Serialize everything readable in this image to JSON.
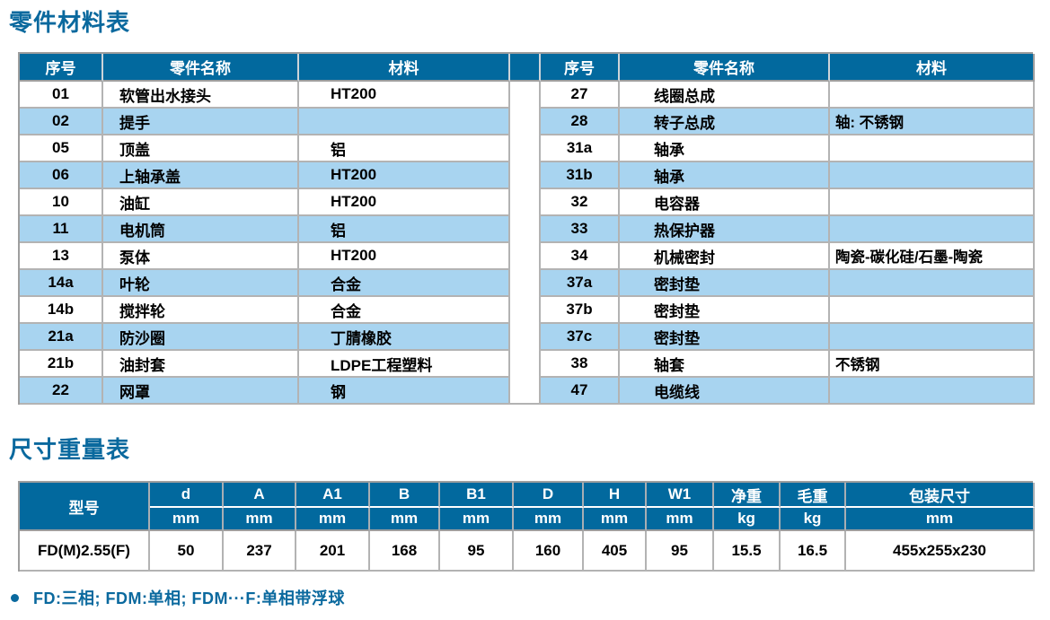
{
  "page": {
    "section1_title": "零件材料表",
    "section2_title": "尺寸重量表",
    "footnote": "FD:三相; FDM:单相; FDM···F:单相带浮球"
  },
  "colors": {
    "header_blue": "#02699E",
    "title_blue": "#0A699E",
    "stripe_blue": "#A8D4F0",
    "border_grey": "#9E9E9E"
  },
  "parts_table": {
    "headers": {
      "no": "序号",
      "name": "零件名称",
      "material": "材料"
    },
    "left_rows": [
      {
        "no": "01",
        "name": "软管出水接头",
        "material": "HT200"
      },
      {
        "no": "02",
        "name": "提手",
        "material": ""
      },
      {
        "no": "05",
        "name": "顶盖",
        "material": "铝"
      },
      {
        "no": "06",
        "name": "上轴承盖",
        "material": "HT200"
      },
      {
        "no": "10",
        "name": "油缸",
        "material": "HT200"
      },
      {
        "no": "11",
        "name": "电机筒",
        "material": "铝"
      },
      {
        "no": "13",
        "name": "泵体",
        "material": "HT200"
      },
      {
        "no": "14a",
        "name": "叶轮",
        "material": "合金"
      },
      {
        "no": "14b",
        "name": "搅拌轮",
        "material": "合金"
      },
      {
        "no": "21a",
        "name": "防沙圈",
        "material": "丁腈橡胶"
      },
      {
        "no": "21b",
        "name": "油封套",
        "material": "LDPE工程塑料"
      },
      {
        "no": "22",
        "name": "网罩",
        "material": "钢"
      }
    ],
    "right_rows": [
      {
        "no": "27",
        "name": "线圈总成",
        "material": ""
      },
      {
        "no": "28",
        "name": "转子总成",
        "material": "轴: 不锈钢"
      },
      {
        "no": "31a",
        "name": "轴承",
        "material": ""
      },
      {
        "no": "31b",
        "name": "轴承",
        "material": ""
      },
      {
        "no": "32",
        "name": "电容器",
        "material": ""
      },
      {
        "no": "33",
        "name": "热保护器",
        "material": ""
      },
      {
        "no": "34",
        "name": "机械密封",
        "material": "陶瓷-碳化硅/石墨-陶瓷"
      },
      {
        "no": "37a",
        "name": "密封垫",
        "material": ""
      },
      {
        "no": "37b",
        "name": "密封垫",
        "material": ""
      },
      {
        "no": "37c",
        "name": "密封垫",
        "material": ""
      },
      {
        "no": "38",
        "name": "轴套",
        "material": "不锈钢"
      },
      {
        "no": "47",
        "name": "电缆线",
        "material": ""
      }
    ]
  },
  "dims_table": {
    "model_header": "型号",
    "columns": [
      {
        "label": "d",
        "unit": "mm"
      },
      {
        "label": "A",
        "unit": "mm"
      },
      {
        "label": "A1",
        "unit": "mm"
      },
      {
        "label": "B",
        "unit": "mm"
      },
      {
        "label": "B1",
        "unit": "mm"
      },
      {
        "label": "D",
        "unit": "mm"
      },
      {
        "label": "H",
        "unit": "mm"
      },
      {
        "label": "W1",
        "unit": "mm"
      },
      {
        "label": "净重",
        "unit": "kg"
      },
      {
        "label": "毛重",
        "unit": "kg"
      },
      {
        "label": "包装尺寸",
        "unit": "mm"
      }
    ],
    "row": {
      "model": "FD(M)2.55(F)",
      "values": [
        "50",
        "237",
        "201",
        "168",
        "95",
        "160",
        "405",
        "95",
        "15.5",
        "16.5",
        "455x255x230"
      ]
    }
  }
}
